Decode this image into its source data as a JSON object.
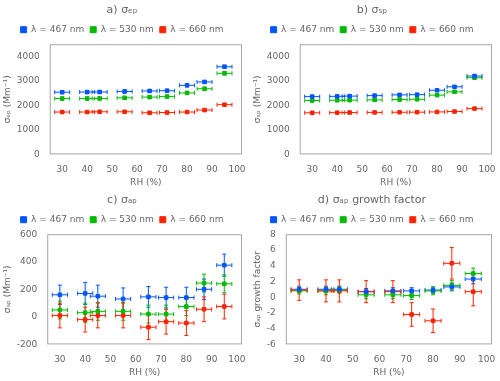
{
  "chart_data": [
    {
      "type": "scatter",
      "title": "a) σₑₚ",
      "xlabel": "RH (%)",
      "ylabel": "σₑₚ (Mm⁻¹)",
      "x": [
        30,
        40,
        45,
        55,
        65,
        72,
        80,
        87,
        95
      ],
      "xlim": [
        25,
        102
      ],
      "xticks": [
        30,
        40,
        50,
        60,
        70,
        80,
        90,
        100
      ],
      "ylim": [
        0,
        4500
      ],
      "yticks": [
        0,
        1000,
        2000,
        3000,
        4000
      ],
      "grid": false,
      "legend": "top",
      "marker": "square",
      "series": [
        {
          "name": "λ = 467 nm",
          "color": "#0055FF",
          "values": [
            2540,
            2545,
            2550,
            2570,
            2590,
            2600,
            2820,
            2960,
            3580
          ],
          "xerr": [
            3,
            3,
            3,
            3,
            3,
            3,
            3,
            3,
            3
          ],
          "yerr": [
            60,
            60,
            60,
            60,
            60,
            60,
            60,
            60,
            60
          ]
        },
        {
          "name": "λ = 530 nm",
          "color": "#00BB00",
          "values": [
            2280,
            2280,
            2285,
            2310,
            2340,
            2360,
            2510,
            2680,
            3310
          ],
          "xerr": [
            3,
            3,
            3,
            3,
            3,
            3,
            3,
            3,
            3
          ],
          "yerr": [
            60,
            60,
            60,
            60,
            60,
            60,
            60,
            60,
            60
          ]
        },
        {
          "name": "λ = 660 nm",
          "color": "#FF2200",
          "values": [
            1730,
            1730,
            1740,
            1740,
            1700,
            1710,
            1730,
            1810,
            2030
          ],
          "xerr": [
            3,
            3,
            3,
            3,
            3,
            3,
            3,
            3,
            3
          ],
          "yerr": [
            50,
            50,
            50,
            50,
            50,
            50,
            50,
            50,
            50
          ]
        }
      ]
    },
    {
      "type": "scatter",
      "title": "b) σₛₚ",
      "xlabel": "RH (%)",
      "ylabel": "σₛₚ (Mm⁻¹)",
      "x": [
        30,
        40,
        45,
        55,
        65,
        72,
        80,
        87,
        95
      ],
      "xlim": [
        25,
        102
      ],
      "xticks": [
        30,
        40,
        50,
        60,
        70,
        80,
        90,
        100
      ],
      "ylim": [
        0,
        4500
      ],
      "yticks": [
        0,
        1000,
        2000,
        3000,
        4000
      ],
      "grid": false,
      "legend": "top",
      "marker": "square",
      "series": [
        {
          "name": "λ = 467 nm",
          "color": "#0055FF",
          "values": [
            2360,
            2370,
            2380,
            2400,
            2430,
            2440,
            2620,
            2760,
            3200
          ],
          "xerr": [
            3,
            3,
            3,
            3,
            3,
            3,
            3,
            3,
            3
          ],
          "yerr": [
            50,
            50,
            50,
            50,
            50,
            50,
            50,
            50,
            50
          ]
        },
        {
          "name": "λ = 530 nm",
          "color": "#00BB00",
          "values": [
            2200,
            2210,
            2215,
            2225,
            2240,
            2250,
            2420,
            2555,
            3130
          ],
          "xerr": [
            3,
            3,
            3,
            3,
            3,
            3,
            3,
            3,
            3
          ],
          "yerr": [
            50,
            50,
            50,
            50,
            50,
            50,
            50,
            50,
            50
          ]
        },
        {
          "name": "λ = 660 nm",
          "color": "#FF2200",
          "values": [
            1700,
            1705,
            1710,
            1715,
            1720,
            1725,
            1735,
            1750,
            1870
          ],
          "xerr": [
            3,
            3,
            3,
            3,
            3,
            3,
            3,
            3,
            3
          ],
          "yerr": [
            40,
            40,
            40,
            40,
            40,
            40,
            40,
            40,
            40
          ]
        }
      ]
    },
    {
      "type": "scatter",
      "title": "c) σₐₚ",
      "xlabel": "RH (%)",
      "ylabel": "σₐₚ (Mm⁻¹)",
      "x": [
        30,
        40,
        45,
        55,
        65,
        72,
        80,
        87,
        95
      ],
      "xlim": [
        25,
        102
      ],
      "xticks": [
        30,
        40,
        50,
        60,
        70,
        80,
        90,
        100
      ],
      "ylim": [
        -200,
        600
      ],
      "yticks": [
        -200,
        0,
        200,
        400,
        600
      ],
      "grid": false,
      "legend": "top",
      "marker": "square",
      "series": [
        {
          "name": "λ = 467 nm",
          "color": "#0055FF",
          "values": [
            160,
            170,
            150,
            130,
            145,
            140,
            140,
            200,
            375
          ],
          "xerr": [
            3,
            3,
            3,
            3,
            3,
            3,
            3,
            3,
            3
          ],
          "yerr": [
            70,
            80,
            80,
            80,
            75,
            75,
            75,
            75,
            80
          ]
        },
        {
          "name": "λ = 530 nm",
          "color": "#00BB00",
          "values": [
            50,
            30,
            40,
            40,
            20,
            20,
            75,
            245,
            240
          ],
          "xerr": [
            3,
            3,
            3,
            3,
            3,
            3,
            3,
            3,
            3
          ],
          "yerr": [
            65,
            70,
            65,
            65,
            65,
            65,
            65,
            65,
            65
          ]
        },
        {
          "name": "λ = 660 nm",
          "color": "#FF2200",
          "values": [
            10,
            -20,
            10,
            10,
            -75,
            -35,
            -45,
            55,
            75
          ],
          "xerr": [
            3,
            3,
            3,
            3,
            3,
            3,
            3,
            3,
            3
          ],
          "yerr": [
            90,
            90,
            90,
            90,
            90,
            90,
            90,
            90,
            90
          ]
        }
      ]
    },
    {
      "type": "scatter",
      "title": "d) σₐₚ growth factor",
      "xlabel": "RH (%)",
      "ylabel": "σₐₚ growth factor",
      "x": [
        30,
        40,
        45,
        55,
        65,
        72,
        80,
        87,
        95
      ],
      "xlim": [
        25,
        102
      ],
      "xticks": [
        30,
        40,
        50,
        60,
        70,
        80,
        90,
        100
      ],
      "ylim": [
        -6,
        8
      ],
      "yticks": [
        -6,
        -4,
        -2,
        0,
        2,
        4,
        6,
        8
      ],
      "grid": false,
      "legend": "top",
      "marker": "square",
      "series": [
        {
          "name": "λ = 467 nm",
          "color": "#0055FF",
          "values": [
            1.0,
            1.0,
            1.0,
            0.7,
            0.8,
            0.8,
            0.9,
            1.3,
            2.3
          ],
          "xerr": [
            3,
            3,
            3,
            3,
            3,
            3,
            3,
            3,
            3
          ],
          "yerr": [
            0.4,
            0.4,
            0.4,
            0.4,
            0.4,
            0.4,
            0.4,
            0.5,
            0.6
          ]
        },
        {
          "name": "λ = 530 nm",
          "color": "#00BB00",
          "values": [
            0.8,
            0.8,
            0.9,
            0.3,
            0.3,
            0.2,
            0.8,
            1.5,
            3.0
          ],
          "xerr": [
            3,
            3,
            3,
            3,
            3,
            3,
            3,
            3,
            3
          ],
          "yerr": [
            0.4,
            0.5,
            0.4,
            0.5,
            0.5,
            0.5,
            0.5,
            0.6,
            0.7
          ]
        },
        {
          "name": "λ = 660 nm",
          "color": "#FF2200",
          "values": [
            0.9,
            0.8,
            0.8,
            0.7,
            0.7,
            -2.2,
            -3.0,
            4.3,
            0.7
          ],
          "xerr": [
            3,
            3,
            3,
            3,
            3,
            3,
            3,
            3,
            3
          ],
          "yerr": [
            1.3,
            1.4,
            1.4,
            1.4,
            1.4,
            1.5,
            1.5,
            2.0,
            1.8
          ]
        }
      ]
    }
  ]
}
